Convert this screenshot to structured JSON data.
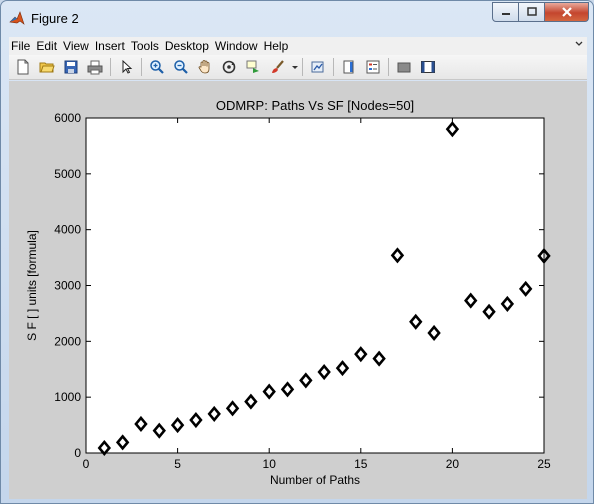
{
  "window": {
    "title": "Figure 2"
  },
  "menubar": {
    "items": [
      "File",
      "Edit",
      "View",
      "Insert",
      "Tools",
      "Desktop",
      "Window",
      "Help"
    ],
    "overflow_icon": "chevron-icon"
  },
  "toolbar": {
    "buttons": [
      "new-figure-icon",
      "open-file-icon",
      "save-icon",
      "print-icon",
      "select-arrow-icon",
      "zoom-in-icon",
      "zoom-out-icon",
      "pan-hand-icon",
      "rotate-3d-icon",
      "data-cursor-icon",
      "brush-icon",
      "brush-dropdown-icon",
      "link-plot-icon",
      "colorbar-icon",
      "legend-icon",
      "hide-plot-tools-icon",
      "show-plot-tools-icon"
    ]
  },
  "colors": {
    "figure_bg": "#cfcfcf",
    "axes_bg": "#ffffff",
    "marker": "#000000"
  },
  "chart_data": {
    "type": "scatter",
    "title": "ODMRP: Paths Vs SF [Nodes=50]",
    "xlabel": "Number of Paths",
    "ylabel": "S F [ ] units [formula]",
    "xlim": [
      0,
      25
    ],
    "ylim": [
      0,
      6000
    ],
    "xticks": [
      "0",
      "5",
      "10",
      "15",
      "20",
      "25"
    ],
    "yticks": [
      "0",
      "1000",
      "2000",
      "3000",
      "4000",
      "5000",
      "6000"
    ],
    "marker": "diamond",
    "grid": false,
    "legend": "none",
    "series": [
      {
        "x": [
          1,
          2,
          3,
          4,
          5,
          6,
          7,
          8,
          9,
          10,
          11,
          12,
          13,
          14,
          15,
          16,
          17,
          18,
          19,
          20,
          21,
          22,
          23,
          24,
          25
        ],
        "y": [
          90,
          190,
          520,
          400,
          500,
          590,
          700,
          800,
          920,
          1100,
          1140,
          1300,
          1450,
          1520,
          1770,
          1690,
          3540,
          2350,
          2150,
          5800,
          2730,
          2530,
          2670,
          2940,
          3530
        ]
      }
    ]
  }
}
